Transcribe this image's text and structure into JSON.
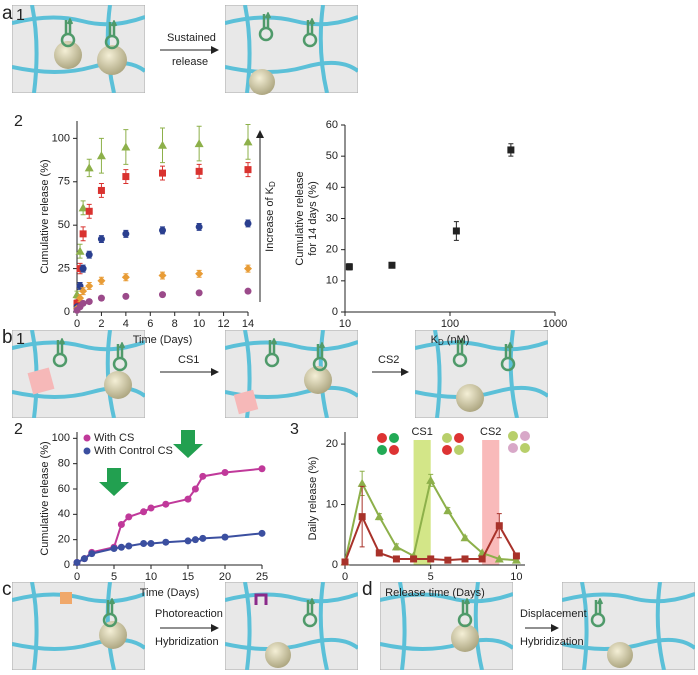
{
  "figure_text": {
    "a": "a",
    "a1": "1",
    "a1_arrow": [
      "Sustained",
      "release"
    ],
    "a2": "2",
    "b": "b",
    "b1": "1",
    "b1_arrow1": "CS1",
    "b1_arrow2": "CS2",
    "b2": "2",
    "b3": "3",
    "c": "c",
    "c_arrow": [
      "Photoreaction",
      "Hybridization"
    ],
    "d": "d",
    "d_arrow": [
      "Displacement",
      "Hybridization"
    ]
  },
  "chart_data": [
    {
      "type": "scatter",
      "xlabel": "Time (Days)",
      "ylabel": [
        "Cumulative release (%)"
      ],
      "annotation": {
        "main": "Increase of K",
        "sub": "D"
      },
      "x": [
        0,
        0.25,
        0.5,
        1,
        2,
        4,
        7,
        10,
        14
      ],
      "xlim": [
        0,
        14
      ],
      "xticks": [
        0,
        2,
        4,
        6,
        8,
        10,
        12,
        14
      ],
      "ylim": [
        0,
        110
      ],
      "yticks": [
        0,
        25,
        50,
        75,
        100
      ],
      "series": [
        {
          "color": "#8db04a",
          "marker": "triangle",
          "values": [
            10,
            35,
            60,
            83,
            90,
            95,
            96,
            97,
            98
          ],
          "errors": [
            2,
            4,
            4,
            5,
            10,
            10,
            10,
            10,
            10
          ]
        },
        {
          "color": "#d9322f",
          "marker": "square",
          "values": [
            5,
            25,
            45,
            58,
            70,
            78,
            80,
            81,
            82
          ],
          "errors": [
            2,
            3,
            4,
            4,
            4,
            4,
            4,
            4,
            4
          ]
        },
        {
          "color": "#2a3f8f",
          "marker": "circle",
          "values": [
            3,
            15,
            25,
            33,
            42,
            45,
            47,
            49,
            51
          ],
          "errors": [
            1,
            2,
            2,
            2,
            2,
            2,
            2,
            2,
            2
          ]
        },
        {
          "color": "#e89c36",
          "marker": "diamond",
          "values": [
            2,
            8,
            12,
            15,
            18,
            20,
            21,
            22,
            25
          ],
          "errors": [
            1,
            2,
            2,
            2,
            2,
            2,
            2,
            2,
            2
          ]
        },
        {
          "color": "#9b4a8a",
          "marker": "circle",
          "values": [
            1,
            3,
            5,
            6,
            8,
            9,
            10,
            11,
            12
          ],
          "errors": [
            1,
            1,
            1,
            1,
            1,
            1,
            1,
            1,
            1
          ]
        }
      ]
    },
    {
      "type": "scatter",
      "xlabel": {
        "main": "K",
        "sub": "D",
        "tail": " (nM)"
      },
      "ylabel": [
        "Cumulative release",
        "for 14 days (%)"
      ],
      "xscale": "log",
      "x": [
        11,
        28,
        115,
        380
      ],
      "xlim": [
        10,
        1000
      ],
      "xticks": [
        10,
        100,
        1000
      ],
      "ylim": [
        0,
        60
      ],
      "yticks": [
        0,
        10,
        20,
        30,
        40,
        50,
        60
      ],
      "series": [
        {
          "color": "#222222",
          "marker": "square",
          "values": [
            14.5,
            15,
            26,
            52
          ],
          "errors": [
            1,
            0.5,
            3,
            2
          ]
        }
      ]
    },
    {
      "type": "line",
      "xlabel": "Time (Days)",
      "ylabel": [
        "Cumulative release (%)"
      ],
      "x": [
        0,
        1,
        2,
        5,
        6,
        7,
        9,
        10,
        12,
        15,
        16,
        17,
        20,
        25
      ],
      "xlim": [
        0,
        25
      ],
      "xticks": [
        0,
        5,
        10,
        15,
        20,
        25
      ],
      "ylim": [
        0,
        105
      ],
      "yticks": [
        0,
        20,
        40,
        60,
        80,
        100
      ],
      "legend": "upper left",
      "series": [
        {
          "name": "With CS",
          "color": "#c0399a",
          "marker": "circle",
          "values": [
            2,
            5,
            10,
            14,
            32,
            38,
            42,
            45,
            48,
            52,
            60,
            70,
            73,
            76
          ]
        },
        {
          "name": "With Control CS",
          "color": "#3b4fa0",
          "marker": "circle",
          "values": [
            2,
            5,
            9,
            13,
            14,
            15,
            17,
            17,
            18,
            19,
            20,
            21,
            22,
            25
          ]
        }
      ]
    },
    {
      "type": "line",
      "xlabel": "Release time (Days)",
      "ylabel": [
        "Daily release (%)"
      ],
      "x": [
        0,
        1,
        2,
        3,
        4,
        5,
        6,
        7,
        8,
        9,
        10
      ],
      "xlim": [
        0,
        10.5
      ],
      "xticks": [
        0,
        5,
        10
      ],
      "ylim": [
        0,
        22
      ],
      "yticks": [
        0,
        10,
        20
      ],
      "shaded": [
        {
          "x": [
            4,
            5
          ],
          "color": "#c8e06a",
          "label": "CS1"
        },
        {
          "x": [
            8,
            9
          ],
          "color": "#f7a9a9",
          "label": "CS2"
        }
      ],
      "series": [
        {
          "color": "#8db04a",
          "marker": "triangle",
          "values": [
            0.5,
            13.5,
            8,
            3,
            1.5,
            14,
            9,
            4.5,
            2,
            1,
            0.8
          ],
          "errors": [
            0,
            2,
            0.5,
            0.5,
            0,
            1,
            0.5,
            0.3,
            0,
            0,
            0
          ]
        },
        {
          "color": "#a8322a",
          "marker": "square",
          "values": [
            0.5,
            8,
            2,
            1,
            1,
            1,
            0.8,
            1,
            1,
            6.5,
            1.5
          ],
          "errors": [
            0,
            5,
            0.5,
            0,
            0,
            0,
            0,
            0,
            0,
            2,
            0
          ]
        }
      ]
    }
  ]
}
